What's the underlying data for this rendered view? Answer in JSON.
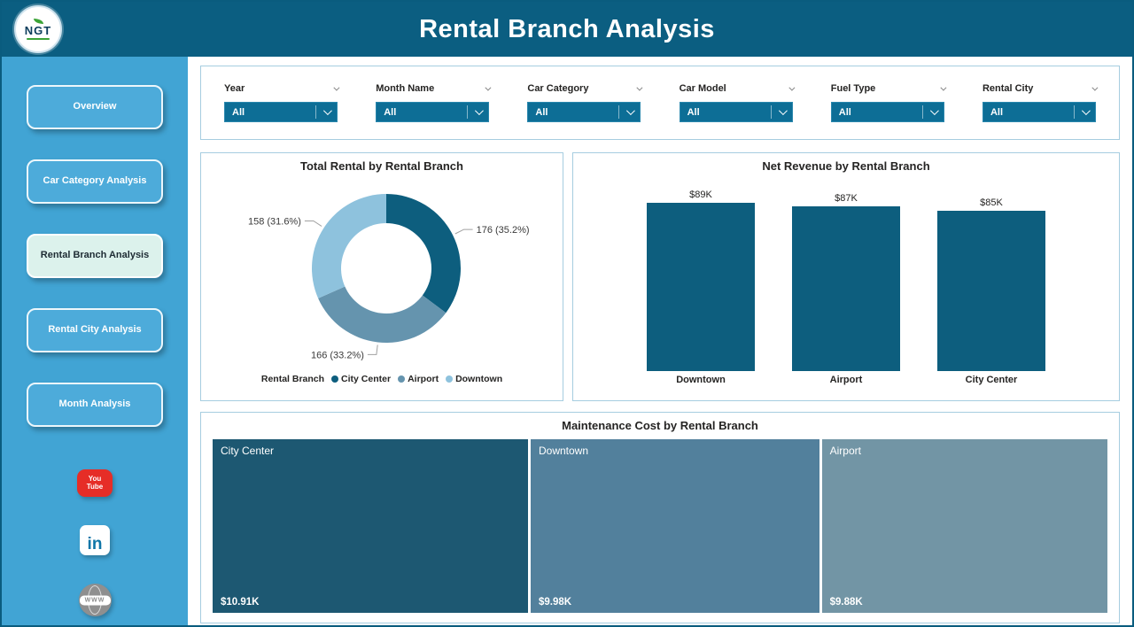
{
  "header": {
    "title": "Rental Branch Analysis",
    "logo_text": "NGT"
  },
  "sidebar": {
    "items": [
      {
        "label": "Overview",
        "active": false
      },
      {
        "label": "Car Category Analysis",
        "active": false
      },
      {
        "label": "Rental Branch Analysis",
        "active": true
      },
      {
        "label": "Rental City Analysis",
        "active": false
      },
      {
        "label": "Month Analysis",
        "active": false
      }
    ],
    "social": {
      "youtube_line1": "You",
      "youtube_line2": "Tube",
      "linkedin_label": "in",
      "website_label": "WWW"
    }
  },
  "filters": [
    {
      "label": "Year",
      "value": "All"
    },
    {
      "label": "Month Name",
      "value": "All"
    },
    {
      "label": "Car Category",
      "value": "All"
    },
    {
      "label": "Car Model",
      "value": "All"
    },
    {
      "label": "Fuel Type",
      "value": "All"
    },
    {
      "label": "Rental City",
      "value": "All"
    }
  ],
  "chart_data": [
    {
      "type": "pie",
      "donut": true,
      "title": "Total Rental by Rental Branch",
      "legend_title": "Rental Branch",
      "legend_position": "bottom",
      "categories": [
        "City Center",
        "Airport",
        "Downtown"
      ],
      "values": [
        176,
        166,
        158
      ],
      "labels": [
        "176 (35.2%)",
        "166 (33.2%)",
        "158 (31.6%)"
      ],
      "colors": [
        "#0d5e7e",
        "#6594ae",
        "#8ec2dd"
      ]
    },
    {
      "type": "bar",
      "title": "Net Revenue by Rental Branch",
      "categories": [
        "Downtown",
        "Airport",
        "City Center"
      ],
      "values": [
        89,
        87,
        85
      ],
      "data_labels": [
        "$89K",
        "$87K",
        "$85K"
      ],
      "color": "#0d5e7e",
      "ylim": [
        0,
        89
      ],
      "grid": false
    },
    {
      "type": "treemap",
      "title": "Maintenance Cost by Rental Branch",
      "categories": [
        "City Center",
        "Downtown",
        "Airport"
      ],
      "values": [
        10.91,
        9.98,
        9.88
      ],
      "data_labels": [
        "$10.91K",
        "$9.98K",
        "$9.88K"
      ],
      "colors": [
        "#1d5872",
        "#52809c",
        "#7295a5"
      ]
    }
  ],
  "theme": {
    "header_bg": "#0b5e81",
    "sidebar_bg": "#41a4d4",
    "slicer_dropdown_bg": "#0d6e96",
    "panel_border": "#a6cde0",
    "active_item_bg": "#dcf2ec",
    "youtube_red": "#e62d27",
    "linkedin_blue": "#0e76a8",
    "globe_gray": "#8f8f8f"
  }
}
